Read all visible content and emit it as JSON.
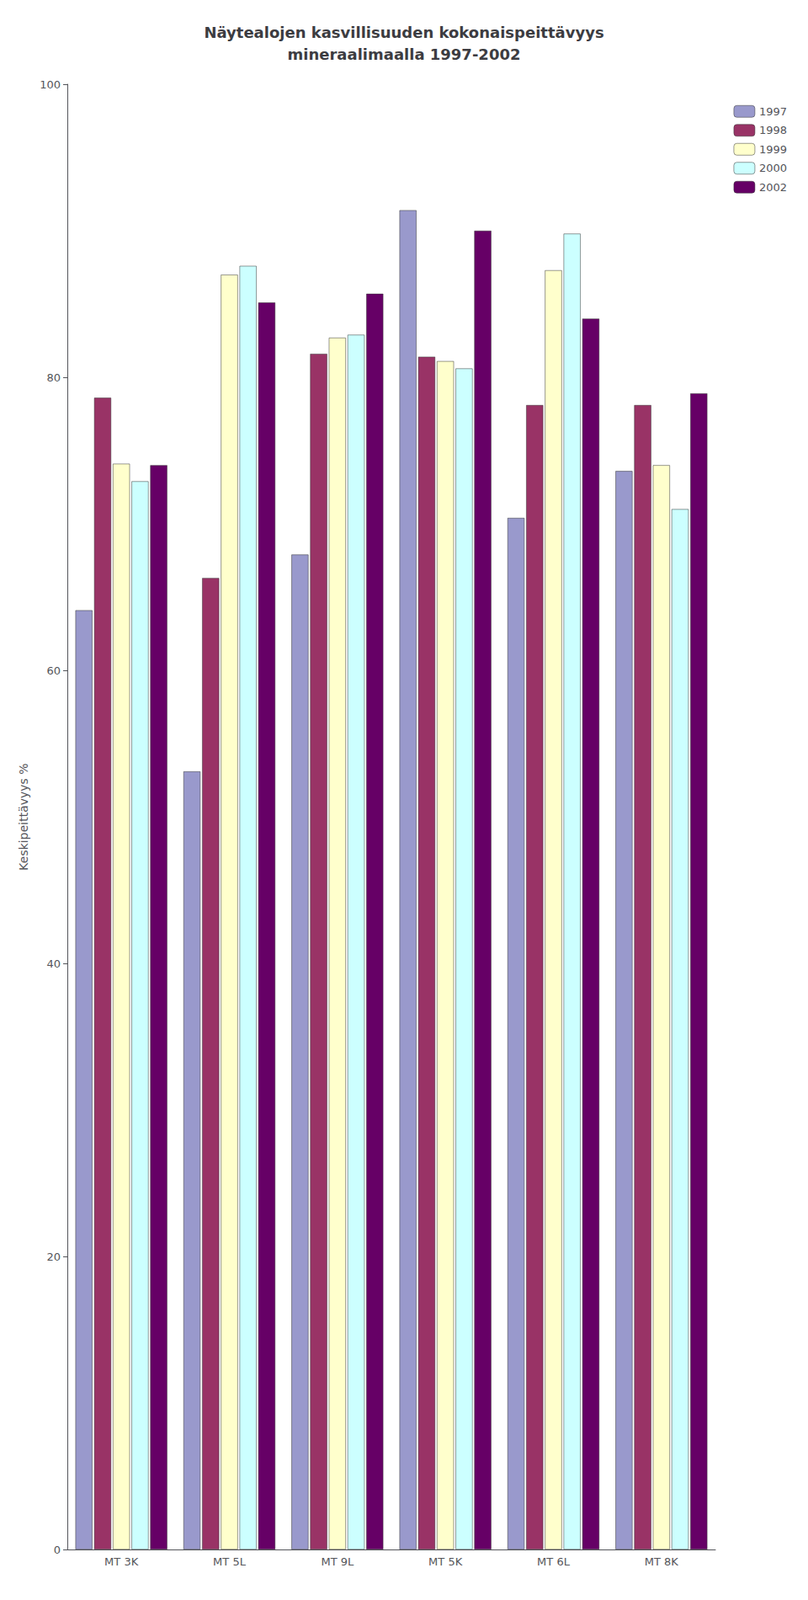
{
  "chart_data": {
    "type": "bar",
    "title": "Näytealojen kasvillisuuden kokonaispeittävyys\nmineraalimaalla 1997-2002",
    "ylabel": "Keskipeittävyys %",
    "categories": [
      "MT 3K",
      "MT 5L",
      "MT 9L",
      "MT 5K",
      "MT 6L",
      "MT 8K"
    ],
    "series": [
      {
        "name": "1997",
        "color": "#9999CC",
        "values": [
          64.1,
          53.1,
          67.9,
          91.4,
          70.4,
          73.6
        ]
      },
      {
        "name": "1998",
        "color": "#993366",
        "values": [
          78.6,
          66.3,
          81.6,
          81.4,
          78.1,
          78.1
        ]
      },
      {
        "name": "1999",
        "color": "#FFFFCC",
        "values": [
          74.1,
          87.0,
          82.7,
          81.1,
          87.3,
          74.0
        ]
      },
      {
        "name": "2000",
        "color": "#CCFFFF",
        "values": [
          72.9,
          87.6,
          82.9,
          80.6,
          89.8,
          71.0
        ]
      },
      {
        "name": "2002",
        "color": "#660066",
        "values": [
          74.0,
          85.1,
          85.7,
          90.0,
          84.0,
          78.9
        ]
      }
    ],
    "ylim": [
      0,
      100
    ],
    "yticks": [
      0,
      20,
      40,
      60,
      80,
      100
    ],
    "grid": false,
    "legend": "right"
  }
}
